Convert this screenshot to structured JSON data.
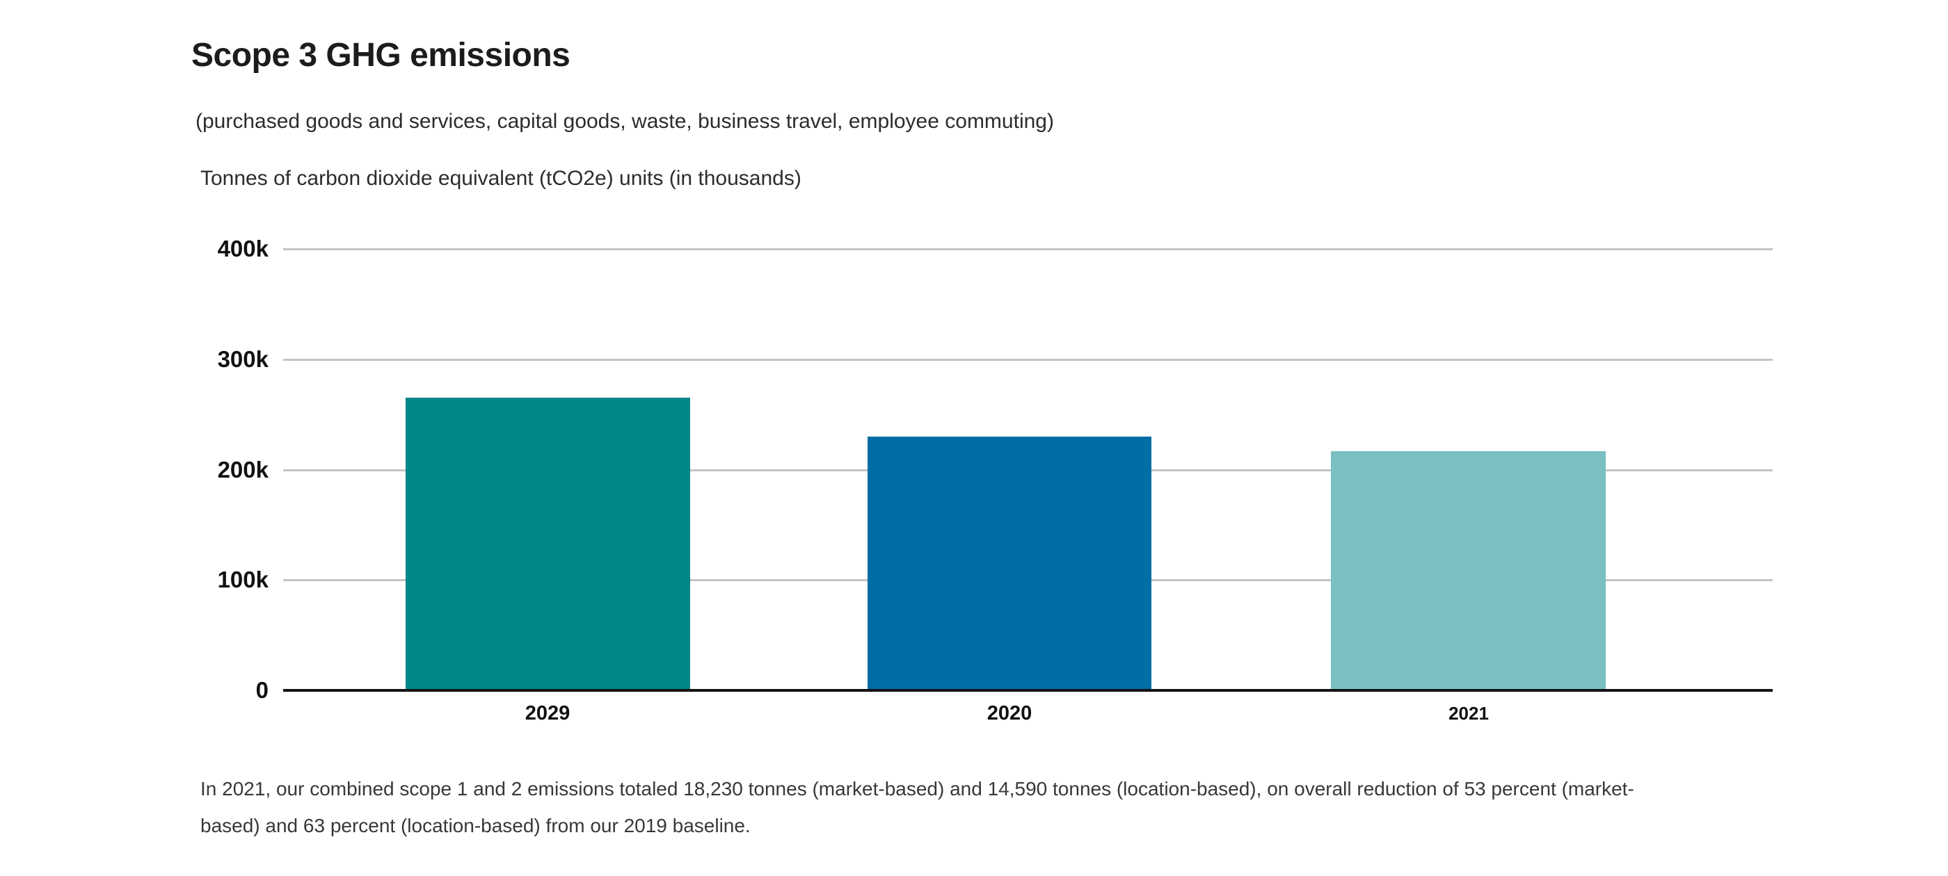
{
  "header": {
    "title": "Scope 3 GHG emissions",
    "subtitle": "(purchased goods and services, capital goods, waste, business travel, employee commuting)",
    "units_label": "Tonnes of carbon dioxide equivalent (tCO2e) units (in thousands)"
  },
  "chart_data": {
    "type": "bar",
    "title": "Scope 3 GHG emissions",
    "subtitle": "(purchased goods and services, capital goods, waste, business travel, employee commuting)",
    "units": "Tonnes of carbon dioxide equivalent (tCO2e) units (in thousands)",
    "categories": [
      "2029",
      "2020",
      "2021"
    ],
    "values": [
      265000,
      230000,
      217000
    ],
    "values_thousands": [
      265,
      230,
      217
    ],
    "bar_colors": [
      "#008687",
      "#006DA6",
      "#7ABFC2"
    ],
    "ylim": [
      0,
      400000
    ],
    "yticks": [
      "400k",
      "300k",
      "200k",
      "100k",
      "0"
    ],
    "ytick_values": [
      400000,
      300000,
      200000,
      100000,
      0
    ],
    "grid": true,
    "gridline_color": "#c4c4c4",
    "axis_color": "#141414",
    "legend": "none"
  },
  "footnote": {
    "line1": "In 2021, our combined scope 1 and 2 emissions totaled 18,230 tonnes (market-based) and 14,590 tonnes (location-based), on overall reduction of 53 percent (market-",
    "line2": "based) and 63 percent (location-based) from our 2019 baseline."
  }
}
